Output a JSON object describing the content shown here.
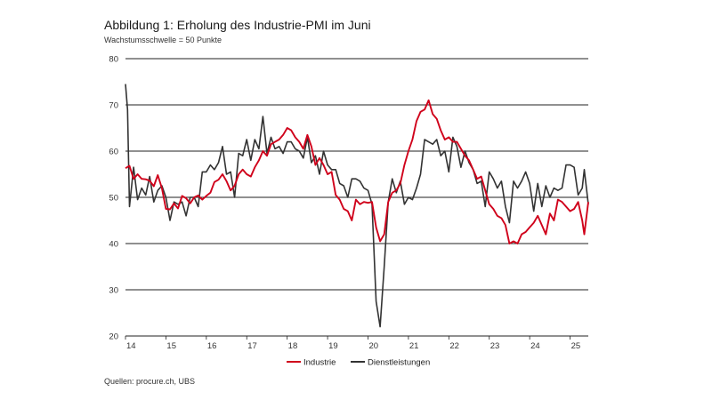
{
  "header": {
    "title": "Abbildung 1: Erholung des Industrie-PMI im Juni",
    "subtitle": "Wachstumsschwelle = 50 Punkte"
  },
  "footer": {
    "source": "Quellen: procure.ch, UBS"
  },
  "colors": {
    "industrie": "#d0021b",
    "dienstleistungen": "#333333",
    "grid": "#222222"
  },
  "chart_data": {
    "type": "line",
    "title": "Abbildung 1: Erholung des Industrie-PMI im Juni",
    "subtitle": "Wachstumsschwelle = 50 Punkte",
    "xlabel": "",
    "ylabel": "",
    "ylim": [
      20,
      80
    ],
    "yticks": [
      20,
      30,
      40,
      50,
      60,
      70,
      80
    ],
    "xlim": [
      14.0,
      25.45
    ],
    "xticks": [
      "14",
      "15",
      "16",
      "17",
      "18",
      "19",
      "20",
      "21",
      "22",
      "23",
      "24",
      "25"
    ],
    "grid": "horizontal",
    "legend": "bottom-center",
    "series": [
      {
        "name": "Industrie",
        "color": "#d0021b",
        "points": [
          [
            14.0,
            56.3
          ],
          [
            14.1,
            56.8
          ],
          [
            14.2,
            54.0
          ],
          [
            14.3,
            55.0
          ],
          [
            14.4,
            54.0
          ],
          [
            14.5,
            53.9
          ],
          [
            14.6,
            53.6
          ],
          [
            14.7,
            52.4
          ],
          [
            14.8,
            54.8
          ],
          [
            14.9,
            52.0
          ],
          [
            15.0,
            47.5
          ],
          [
            15.1,
            47.4
          ],
          [
            15.2,
            48.7
          ],
          [
            15.3,
            47.6
          ],
          [
            15.4,
            50.3
          ],
          [
            15.5,
            49.8
          ],
          [
            15.6,
            48.7
          ],
          [
            15.7,
            50.0
          ],
          [
            15.8,
            50.4
          ],
          [
            15.9,
            49.5
          ],
          [
            16.0,
            50.3
          ],
          [
            16.1,
            51.0
          ],
          [
            16.2,
            53.3
          ],
          [
            16.3,
            53.8
          ],
          [
            16.4,
            55.0
          ],
          [
            16.5,
            53.5
          ],
          [
            16.6,
            51.5
          ],
          [
            16.7,
            52.5
          ],
          [
            16.8,
            55.0
          ],
          [
            16.9,
            56.0
          ],
          [
            17.0,
            55.0
          ],
          [
            17.1,
            54.5
          ],
          [
            17.2,
            56.5
          ],
          [
            17.3,
            58.0
          ],
          [
            17.4,
            60.0
          ],
          [
            17.5,
            59.0
          ],
          [
            17.6,
            61.5
          ],
          [
            17.7,
            62.0
          ],
          [
            17.8,
            62.5
          ],
          [
            17.9,
            63.5
          ],
          [
            18.0,
            65.0
          ],
          [
            18.1,
            64.5
          ],
          [
            18.2,
            63.0
          ],
          [
            18.3,
            62.0
          ],
          [
            18.4,
            60.5
          ],
          [
            18.5,
            63.5
          ],
          [
            18.6,
            61.0
          ],
          [
            18.7,
            57.0
          ],
          [
            18.8,
            58.5
          ],
          [
            18.9,
            57.0
          ],
          [
            19.0,
            55.0
          ],
          [
            19.1,
            55.5
          ],
          [
            19.2,
            50.5
          ],
          [
            19.3,
            49.5
          ],
          [
            19.4,
            47.5
          ],
          [
            19.5,
            47.0
          ],
          [
            19.6,
            45.0
          ],
          [
            19.7,
            49.5
          ],
          [
            19.8,
            48.5
          ],
          [
            19.9,
            49.0
          ],
          [
            20.0,
            48.8
          ],
          [
            20.1,
            49.0
          ],
          [
            20.2,
            43.5
          ],
          [
            20.3,
            40.5
          ],
          [
            20.4,
            42.0
          ],
          [
            20.5,
            49.0
          ],
          [
            20.6,
            51.0
          ],
          [
            20.7,
            51.5
          ],
          [
            20.8,
            53.0
          ],
          [
            20.9,
            57.0
          ],
          [
            21.0,
            60.0
          ],
          [
            21.1,
            62.5
          ],
          [
            21.2,
            66.5
          ],
          [
            21.3,
            68.5
          ],
          [
            21.4,
            69.0
          ],
          [
            21.5,
            71.0
          ],
          [
            21.6,
            68.0
          ],
          [
            21.7,
            67.0
          ],
          [
            21.8,
            64.5
          ],
          [
            21.9,
            62.5
          ],
          [
            22.0,
            63.0
          ],
          [
            22.1,
            62.0
          ],
          [
            22.2,
            62.0
          ],
          [
            22.3,
            60.5
          ],
          [
            22.4,
            59.0
          ],
          [
            22.5,
            58.0
          ],
          [
            22.6,
            56.0
          ],
          [
            22.7,
            54.0
          ],
          [
            22.8,
            54.5
          ],
          [
            22.9,
            51.5
          ],
          [
            23.0,
            48.5
          ],
          [
            23.1,
            47.5
          ],
          [
            23.2,
            46.0
          ],
          [
            23.3,
            45.5
          ],
          [
            23.4,
            44.0
          ],
          [
            23.5,
            40.0
          ],
          [
            23.6,
            40.5
          ],
          [
            23.7,
            40.0
          ],
          [
            23.8,
            42.0
          ],
          [
            23.9,
            42.5
          ],
          [
            24.0,
            43.5
          ],
          [
            24.1,
            44.5
          ],
          [
            24.2,
            46.0
          ],
          [
            24.3,
            44.0
          ],
          [
            24.4,
            42.0
          ],
          [
            24.5,
            46.5
          ],
          [
            24.6,
            45.0
          ],
          [
            24.7,
            49.5
          ],
          [
            24.8,
            49.0
          ],
          [
            24.9,
            48.0
          ],
          [
            25.0,
            47.0
          ],
          [
            25.1,
            47.5
          ],
          [
            25.2,
            49.0
          ],
          [
            25.3,
            45.0
          ],
          [
            25.35,
            42.0
          ],
          [
            25.45,
            49.0
          ]
        ]
      },
      {
        "name": "Dienstleistungen",
        "color": "#333333",
        "points": [
          [
            14.0,
            74.5
          ],
          [
            14.05,
            69.0
          ],
          [
            14.1,
            48.0
          ],
          [
            14.2,
            56.5
          ],
          [
            14.3,
            49.5
          ],
          [
            14.4,
            52.0
          ],
          [
            14.5,
            50.5
          ],
          [
            14.6,
            54.5
          ],
          [
            14.7,
            49.0
          ],
          [
            14.8,
            51.5
          ],
          [
            14.9,
            52.5
          ],
          [
            15.0,
            50.0
          ],
          [
            15.1,
            45.0
          ],
          [
            15.2,
            49.0
          ],
          [
            15.3,
            48.5
          ],
          [
            15.4,
            49.0
          ],
          [
            15.5,
            46.0
          ],
          [
            15.6,
            50.0
          ],
          [
            15.7,
            50.0
          ],
          [
            15.8,
            48.0
          ],
          [
            15.9,
            55.5
          ],
          [
            16.0,
            55.5
          ],
          [
            16.1,
            57.0
          ],
          [
            16.2,
            56.0
          ],
          [
            16.3,
            57.5
          ],
          [
            16.4,
            61.0
          ],
          [
            16.5,
            55.0
          ],
          [
            16.6,
            55.5
          ],
          [
            16.7,
            50.0
          ],
          [
            16.8,
            59.5
          ],
          [
            16.9,
            59.0
          ],
          [
            17.0,
            62.5
          ],
          [
            17.1,
            58.0
          ],
          [
            17.2,
            62.5
          ],
          [
            17.3,
            60.5
          ],
          [
            17.4,
            67.5
          ],
          [
            17.5,
            59.5
          ],
          [
            17.6,
            63.0
          ],
          [
            17.7,
            60.5
          ],
          [
            17.8,
            61.0
          ],
          [
            17.9,
            59.5
          ],
          [
            18.0,
            62.0
          ],
          [
            18.1,
            62.0
          ],
          [
            18.2,
            60.5
          ],
          [
            18.3,
            60.0
          ],
          [
            18.4,
            58.5
          ],
          [
            18.5,
            63.0
          ],
          [
            18.6,
            57.5
          ],
          [
            18.7,
            59.0
          ],
          [
            18.8,
            55.0
          ],
          [
            18.9,
            60.0
          ],
          [
            19.0,
            57.0
          ],
          [
            19.1,
            56.0
          ],
          [
            19.2,
            56.0
          ],
          [
            19.3,
            53.0
          ],
          [
            19.4,
            52.5
          ],
          [
            19.5,
            50.0
          ],
          [
            19.6,
            54.0
          ],
          [
            19.7,
            54.0
          ],
          [
            19.8,
            53.5
          ],
          [
            19.9,
            52.0
          ],
          [
            20.0,
            51.5
          ],
          [
            20.1,
            48.5
          ],
          [
            20.2,
            27.5
          ],
          [
            20.3,
            22.0
          ],
          [
            20.4,
            35.0
          ],
          [
            20.5,
            49.0
          ],
          [
            20.6,
            54.0
          ],
          [
            20.7,
            51.0
          ],
          [
            20.8,
            53.5
          ],
          [
            20.9,
            48.5
          ],
          [
            21.0,
            50.0
          ],
          [
            21.1,
            49.5
          ],
          [
            21.2,
            52.0
          ],
          [
            21.3,
            55.0
          ],
          [
            21.4,
            62.5
          ],
          [
            21.5,
            62.0
          ],
          [
            21.6,
            61.5
          ],
          [
            21.7,
            62.5
          ],
          [
            21.8,
            59.0
          ],
          [
            21.9,
            60.0
          ],
          [
            22.0,
            55.5
          ],
          [
            22.1,
            63.0
          ],
          [
            22.2,
            61.0
          ],
          [
            22.3,
            56.5
          ],
          [
            22.4,
            60.0
          ],
          [
            22.5,
            57.5
          ],
          [
            22.6,
            56.0
          ],
          [
            22.7,
            53.0
          ],
          [
            22.8,
            53.5
          ],
          [
            22.9,
            48.0
          ],
          [
            23.0,
            55.5
          ],
          [
            23.1,
            54.0
          ],
          [
            23.2,
            52.0
          ],
          [
            23.3,
            53.5
          ],
          [
            23.4,
            48.0
          ],
          [
            23.5,
            44.5
          ],
          [
            23.6,
            53.5
          ],
          [
            23.7,
            52.0
          ],
          [
            23.8,
            53.5
          ],
          [
            23.9,
            55.5
          ],
          [
            24.0,
            53.0
          ],
          [
            24.1,
            47.0
          ],
          [
            24.2,
            53.0
          ],
          [
            24.3,
            48.0
          ],
          [
            24.4,
            52.5
          ],
          [
            24.5,
            50.0
          ],
          [
            24.6,
            52.0
          ],
          [
            24.7,
            51.5
          ],
          [
            24.8,
            52.0
          ],
          [
            24.9,
            57.0
          ],
          [
            25.0,
            57.0
          ],
          [
            25.1,
            56.5
          ],
          [
            25.2,
            50.5
          ],
          [
            25.3,
            52.0
          ],
          [
            25.35,
            56.0
          ],
          [
            25.45,
            48.5
          ]
        ]
      }
    ]
  }
}
